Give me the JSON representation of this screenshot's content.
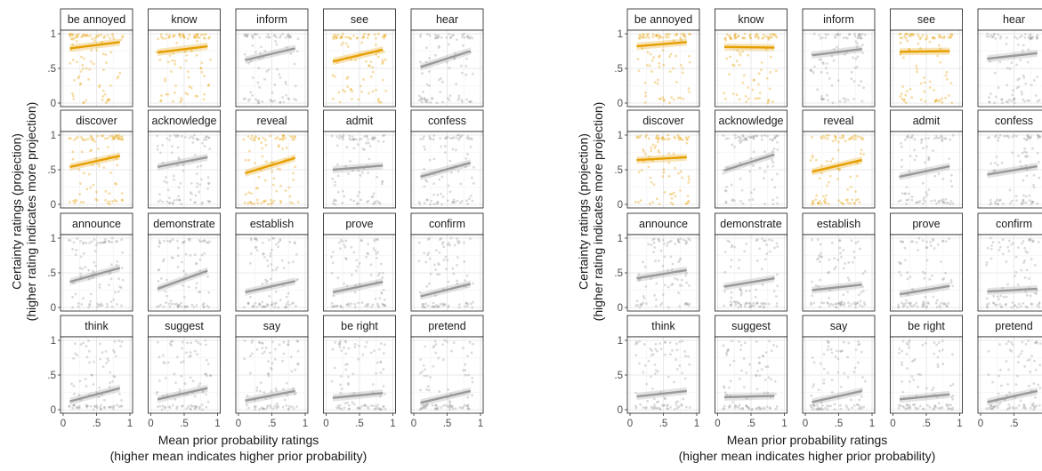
{
  "chart_data": [
    {
      "type": "scatter",
      "xlabel": [
        "Mean prior probability ratings",
        "(higher mean indicates higher prior probability)"
      ],
      "ylabel": [
        "Certainty ratings (projection)",
        "(higher rating indicates more projection)"
      ],
      "xlim": [
        0,
        1
      ],
      "ylim": [
        0,
        1
      ],
      "xticks": [
        "0",
        ".5",
        "1"
      ],
      "yticks": [
        "0",
        ".5",
        "1"
      ],
      "grid": true,
      "colors": {
        "highlight": "#E69F00",
        "other": "#999999"
      },
      "panels": [
        {
          "label": "be annoyed",
          "highlight": true,
          "fit": [
            [
              0.1,
              0.79
            ],
            [
              0.85,
              0.88
            ]
          ]
        },
        {
          "label": "know",
          "highlight": true,
          "fit": [
            [
              0.1,
              0.73
            ],
            [
              0.85,
              0.82
            ]
          ]
        },
        {
          "label": "inform",
          "highlight": false,
          "fit": [
            [
              0.1,
              0.62
            ],
            [
              0.85,
              0.79
            ]
          ]
        },
        {
          "label": "see",
          "highlight": true,
          "fit": [
            [
              0.1,
              0.6
            ],
            [
              0.85,
              0.77
            ]
          ]
        },
        {
          "label": "hear",
          "highlight": false,
          "fit": [
            [
              0.1,
              0.52
            ],
            [
              0.85,
              0.75
            ]
          ]
        },
        {
          "label": "discover",
          "highlight": true,
          "fit": [
            [
              0.1,
              0.54
            ],
            [
              0.85,
              0.7
            ]
          ]
        },
        {
          "label": "acknowledge",
          "highlight": false,
          "fit": [
            [
              0.1,
              0.54
            ],
            [
              0.85,
              0.68
            ]
          ]
        },
        {
          "label": "reveal",
          "highlight": true,
          "fit": [
            [
              0.1,
              0.45
            ],
            [
              0.85,
              0.67
            ]
          ]
        },
        {
          "label": "admit",
          "highlight": false,
          "fit": [
            [
              0.1,
              0.5
            ],
            [
              0.85,
              0.56
            ]
          ]
        },
        {
          "label": "confess",
          "highlight": false,
          "fit": [
            [
              0.1,
              0.4
            ],
            [
              0.85,
              0.6
            ]
          ]
        },
        {
          "label": "announce",
          "highlight": false,
          "fit": [
            [
              0.1,
              0.37
            ],
            [
              0.85,
              0.57
            ]
          ]
        },
        {
          "label": "demonstrate",
          "highlight": false,
          "fit": [
            [
              0.1,
              0.27
            ],
            [
              0.85,
              0.53
            ]
          ]
        },
        {
          "label": "establish",
          "highlight": false,
          "fit": [
            [
              0.1,
              0.22
            ],
            [
              0.85,
              0.38
            ]
          ]
        },
        {
          "label": "prove",
          "highlight": false,
          "fit": [
            [
              0.1,
              0.22
            ],
            [
              0.85,
              0.37
            ]
          ]
        },
        {
          "label": "confirm",
          "highlight": false,
          "fit": [
            [
              0.1,
              0.16
            ],
            [
              0.85,
              0.34
            ]
          ]
        },
        {
          "label": "think",
          "highlight": false,
          "fit": [
            [
              0.1,
              0.12
            ],
            [
              0.85,
              0.31
            ]
          ]
        },
        {
          "label": "suggest",
          "highlight": false,
          "fit": [
            [
              0.1,
              0.15
            ],
            [
              0.85,
              0.31
            ]
          ]
        },
        {
          "label": "say",
          "highlight": false,
          "fit": [
            [
              0.1,
              0.13
            ],
            [
              0.85,
              0.27
            ]
          ]
        },
        {
          "label": "be right",
          "highlight": false,
          "fit": [
            [
              0.1,
              0.17
            ],
            [
              0.85,
              0.24
            ]
          ]
        },
        {
          "label": "pretend",
          "highlight": false,
          "fit": [
            [
              0.1,
              0.1
            ],
            [
              0.85,
              0.27
            ]
          ]
        }
      ]
    },
    {
      "type": "scatter",
      "xlabel": [
        "Mean prior probability ratings",
        "(higher mean indicates higher prior probability)"
      ],
      "ylabel": [
        "Certainty ratings (projection)",
        "(higher rating indicates more projection)"
      ],
      "xlim": [
        0,
        1
      ],
      "ylim": [
        0,
        1
      ],
      "xticks": [
        "0",
        ".5",
        "1"
      ],
      "yticks": [
        "0",
        ".5",
        "1"
      ],
      "grid": true,
      "colors": {
        "highlight": "#E69F00",
        "other": "#999999"
      },
      "panels": [
        {
          "label": "be annoyed",
          "highlight": true,
          "fit": [
            [
              0.1,
              0.82
            ],
            [
              0.85,
              0.88
            ]
          ]
        },
        {
          "label": "know",
          "highlight": true,
          "fit": [
            [
              0.1,
              0.81
            ],
            [
              0.85,
              0.8
            ]
          ]
        },
        {
          "label": "inform",
          "highlight": false,
          "fit": [
            [
              0.1,
              0.69
            ],
            [
              0.85,
              0.78
            ]
          ]
        },
        {
          "label": "see",
          "highlight": true,
          "fit": [
            [
              0.1,
              0.74
            ],
            [
              0.85,
              0.75
            ]
          ]
        },
        {
          "label": "hear",
          "highlight": false,
          "fit": [
            [
              0.1,
              0.64
            ],
            [
              0.85,
              0.72
            ]
          ]
        },
        {
          "label": "discover",
          "highlight": true,
          "fit": [
            [
              0.1,
              0.64
            ],
            [
              0.85,
              0.68
            ]
          ]
        },
        {
          "label": "acknowledge",
          "highlight": false,
          "fit": [
            [
              0.1,
              0.49
            ],
            [
              0.85,
              0.72
            ]
          ]
        },
        {
          "label": "reveal",
          "highlight": true,
          "fit": [
            [
              0.1,
              0.47
            ],
            [
              0.85,
              0.64
            ]
          ]
        },
        {
          "label": "admit",
          "highlight": false,
          "fit": [
            [
              0.1,
              0.4
            ],
            [
              0.85,
              0.55
            ]
          ]
        },
        {
          "label": "confess",
          "highlight": false,
          "fit": [
            [
              0.1,
              0.43
            ],
            [
              0.85,
              0.55
            ]
          ]
        },
        {
          "label": "announce",
          "highlight": false,
          "fit": [
            [
              0.1,
              0.42
            ],
            [
              0.85,
              0.54
            ]
          ]
        },
        {
          "label": "demonstrate",
          "highlight": false,
          "fit": [
            [
              0.1,
              0.3
            ],
            [
              0.85,
              0.42
            ]
          ]
        },
        {
          "label": "establish",
          "highlight": false,
          "fit": [
            [
              0.1,
              0.25
            ],
            [
              0.85,
              0.33
            ]
          ]
        },
        {
          "label": "prove",
          "highlight": false,
          "fit": [
            [
              0.1,
              0.19
            ],
            [
              0.85,
              0.31
            ]
          ]
        },
        {
          "label": "confirm",
          "highlight": false,
          "fit": [
            [
              0.1,
              0.23
            ],
            [
              0.85,
              0.27
            ]
          ]
        },
        {
          "label": "think",
          "highlight": false,
          "fit": [
            [
              0.1,
              0.19
            ],
            [
              0.85,
              0.27
            ]
          ]
        },
        {
          "label": "suggest",
          "highlight": false,
          "fit": [
            [
              0.1,
              0.18
            ],
            [
              0.85,
              0.2
            ]
          ]
        },
        {
          "label": "say",
          "highlight": false,
          "fit": [
            [
              0.1,
              0.11
            ],
            [
              0.85,
              0.27
            ]
          ]
        },
        {
          "label": "be right",
          "highlight": false,
          "fit": [
            [
              0.1,
              0.15
            ],
            [
              0.85,
              0.22
            ]
          ]
        },
        {
          "label": "pretend",
          "highlight": false,
          "fit": [
            [
              0.1,
              0.11
            ],
            [
              0.85,
              0.27
            ]
          ]
        }
      ]
    }
  ]
}
